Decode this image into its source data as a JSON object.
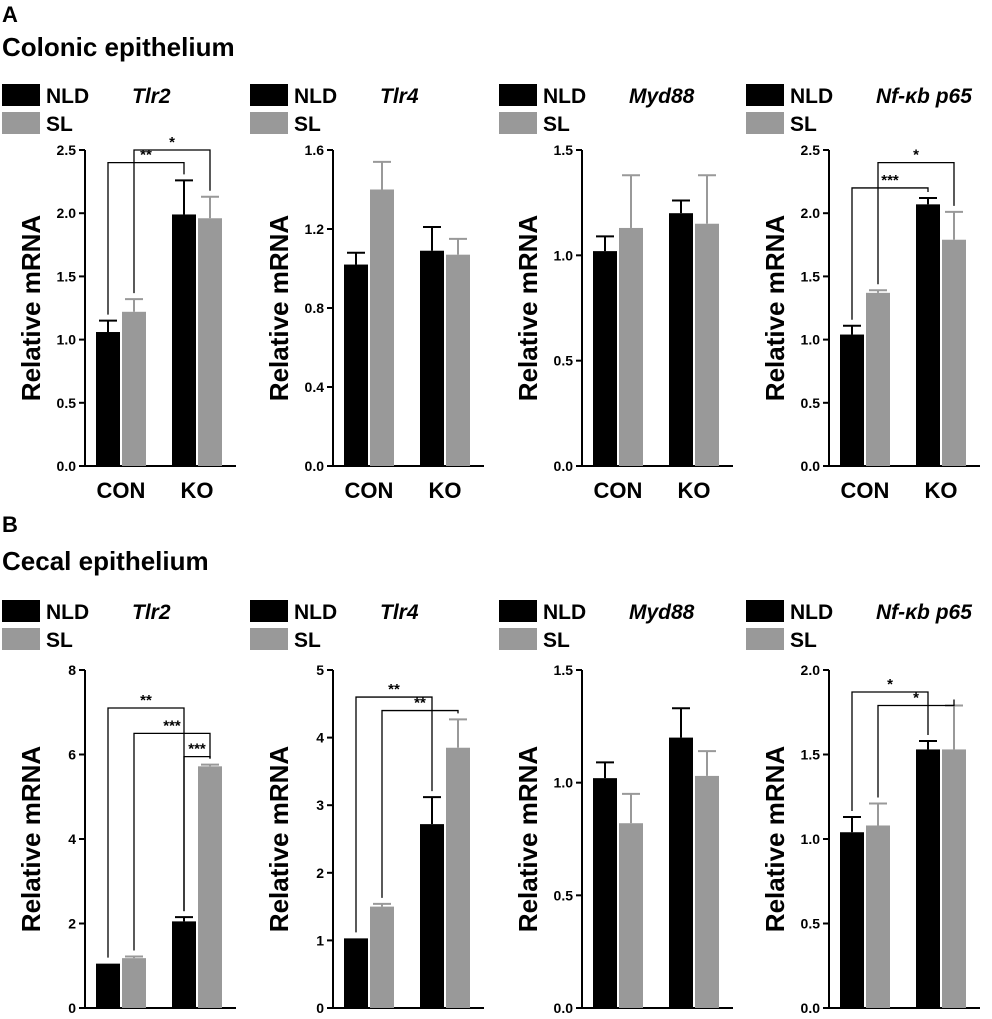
{
  "figure": {
    "panels": [
      {
        "letter": "A",
        "title": "Colonic epithelium"
      },
      {
        "letter": "B",
        "title": "Cecal epithelium"
      }
    ]
  },
  "chart_data": [
    {
      "type": "bar",
      "panel": "A",
      "gene": "Tlr2",
      "legend": [
        "NLD",
        "SL"
      ],
      "ylabel": "Relative mRNA",
      "categories": [
        "CON",
        "KO"
      ],
      "ylim": [
        0,
        2.5
      ],
      "yticks": [
        "0.0",
        "0.5",
        "1.0",
        "1.5",
        "2.0",
        "2.5"
      ],
      "series": [
        {
          "name": "NLD",
          "color": "#000000",
          "values": [
            1.06,
            1.99
          ],
          "errors": [
            0.09,
            0.27
          ]
        },
        {
          "name": "SL",
          "color": "#999999",
          "values": [
            1.22,
            1.96
          ],
          "errors": [
            0.1,
            0.17
          ]
        }
      ],
      "significance": [
        {
          "from": [
            0,
            0
          ],
          "to": [
            1,
            0
          ],
          "label": "**",
          "y": 2.4
        },
        {
          "from": [
            0,
            1
          ],
          "to": [
            1,
            1
          ],
          "label": "*",
          "y": 2.5
        }
      ]
    },
    {
      "type": "bar",
      "panel": "A",
      "gene": "Tlr4",
      "legend": [
        "NLD",
        "SL"
      ],
      "ylabel": "Relative mRNA",
      "categories": [
        "CON",
        "KO"
      ],
      "ylim": [
        0,
        1.6
      ],
      "yticks": [
        "0.0",
        "0.4",
        "0.8",
        "1.2",
        "1.6"
      ],
      "series": [
        {
          "name": "NLD",
          "color": "#000000",
          "values": [
            1.02,
            1.09
          ],
          "errors": [
            0.06,
            0.12
          ]
        },
        {
          "name": "SL",
          "color": "#999999",
          "values": [
            1.4,
            1.07
          ],
          "errors": [
            0.14,
            0.08
          ]
        }
      ],
      "significance": []
    },
    {
      "type": "bar",
      "panel": "A",
      "gene": "Myd88",
      "legend": [
        "NLD",
        "SL"
      ],
      "ylabel": "Relative mRNA",
      "categories": [
        "CON",
        "KO"
      ],
      "ylim": [
        0,
        1.5
      ],
      "yticks": [
        "0.0",
        "0.5",
        "1.0",
        "1.5"
      ],
      "series": [
        {
          "name": "NLD",
          "color": "#000000",
          "values": [
            1.02,
            1.2
          ],
          "errors": [
            0.07,
            0.06
          ]
        },
        {
          "name": "SL",
          "color": "#999999",
          "values": [
            1.13,
            1.15
          ],
          "errors": [
            0.25,
            0.23
          ]
        }
      ],
      "significance": []
    },
    {
      "type": "bar",
      "panel": "A",
      "gene": "Nf-κb p65",
      "legend": [
        "NLD",
        "SL"
      ],
      "ylabel": "Relative mRNA",
      "categories": [
        "CON",
        "KO"
      ],
      "ylim": [
        0,
        2.5
      ],
      "yticks": [
        "0.0",
        "0.5",
        "1.0",
        "1.5",
        "2.0",
        "2.5"
      ],
      "series": [
        {
          "name": "NLD",
          "color": "#000000",
          "values": [
            1.04,
            2.07
          ],
          "errors": [
            0.07,
            0.05
          ]
        },
        {
          "name": "SL",
          "color": "#999999",
          "values": [
            1.37,
            1.79
          ],
          "errors": [
            0.02,
            0.22
          ]
        }
      ],
      "significance": [
        {
          "from": [
            0,
            0
          ],
          "to": [
            1,
            0
          ],
          "label": "***",
          "y": 2.2
        },
        {
          "from": [
            0,
            1
          ],
          "to": [
            1,
            1
          ],
          "label": "*",
          "y": 2.4
        }
      ]
    },
    {
      "type": "bar",
      "panel": "B",
      "gene": "Tlr2",
      "legend": [
        "NLD",
        "SL"
      ],
      "ylabel": "Relative mRNA",
      "categories": [
        "CON",
        "KO"
      ],
      "ylim": [
        0,
        8
      ],
      "yticks": [
        "0",
        "2",
        "4",
        "6",
        "8"
      ],
      "series": [
        {
          "name": "NLD",
          "color": "#000000",
          "values": [
            1.05,
            2.05
          ],
          "errors": [
            0.0,
            0.1
          ]
        },
        {
          "name": "SL",
          "color": "#999999",
          "values": [
            1.18,
            5.72
          ],
          "errors": [
            0.04,
            0.04
          ]
        }
      ],
      "significance": [
        {
          "from": [
            0,
            0
          ],
          "to": [
            1,
            0
          ],
          "label": "**",
          "y": 7.1
        },
        {
          "from": [
            0,
            1
          ],
          "to": [
            1,
            1
          ],
          "label": "***",
          "y": 6.5
        },
        {
          "from": [
            1,
            0
          ],
          "to": [
            1,
            1
          ],
          "label": "***",
          "y": 5.95
        }
      ]
    },
    {
      "type": "bar",
      "panel": "B",
      "gene": "Tlr4",
      "legend": [
        "NLD",
        "SL"
      ],
      "ylabel": "Relative mRNA",
      "categories": [
        "CON",
        "KO"
      ],
      "ylim": [
        0,
        5
      ],
      "yticks": [
        "0",
        "1",
        "2",
        "3",
        "4",
        "5"
      ],
      "series": [
        {
          "name": "NLD",
          "color": "#000000",
          "values": [
            1.03,
            2.72
          ],
          "errors": [
            0.0,
            0.4
          ]
        },
        {
          "name": "SL",
          "color": "#999999",
          "values": [
            1.5,
            3.85
          ],
          "errors": [
            0.04,
            0.42
          ]
        }
      ],
      "significance": [
        {
          "from": [
            0,
            0
          ],
          "to": [
            1,
            0
          ],
          "label": "**",
          "y": 4.6
        },
        {
          "from": [
            0,
            1
          ],
          "to": [
            1,
            1
          ],
          "label": "**",
          "y": 4.4
        }
      ]
    },
    {
      "type": "bar",
      "panel": "B",
      "gene": "Myd88",
      "legend": [
        "NLD",
        "SL"
      ],
      "ylabel": "Relative mRNA",
      "categories": [
        "CON",
        "KO"
      ],
      "ylim": [
        0,
        1.5
      ],
      "yticks": [
        "0.0",
        "0.5",
        "1.0",
        "1.5"
      ],
      "series": [
        {
          "name": "NLD",
          "color": "#000000",
          "values": [
            1.02,
            1.2
          ],
          "errors": [
            0.07,
            0.13
          ]
        },
        {
          "name": "SL",
          "color": "#999999",
          "values": [
            0.82,
            1.03
          ],
          "errors": [
            0.13,
            0.11
          ]
        }
      ],
      "significance": []
    },
    {
      "type": "bar",
      "panel": "B",
      "gene": "Nf-κb p65",
      "legend": [
        "NLD",
        "SL"
      ],
      "ylabel": "Relative mRNA",
      "categories": [
        "CON",
        "KO"
      ],
      "ylim": [
        0,
        2.0
      ],
      "yticks": [
        "0.0",
        "0.5",
        "1.0",
        "1.5",
        "2.0"
      ],
      "series": [
        {
          "name": "NLD",
          "color": "#000000",
          "values": [
            1.04,
            1.53
          ],
          "errors": [
            0.09,
            0.05
          ]
        },
        {
          "name": "SL",
          "color": "#999999",
          "values": [
            1.08,
            1.53
          ],
          "errors": [
            0.13,
            0.26
          ]
        }
      ],
      "significance": [
        {
          "from": [
            0,
            0
          ],
          "to": [
            1,
            0
          ],
          "label": "*",
          "y": 1.87
        },
        {
          "from": [
            0,
            1
          ],
          "to": [
            1,
            1
          ],
          "label": "*",
          "y": 1.79
        }
      ]
    }
  ]
}
